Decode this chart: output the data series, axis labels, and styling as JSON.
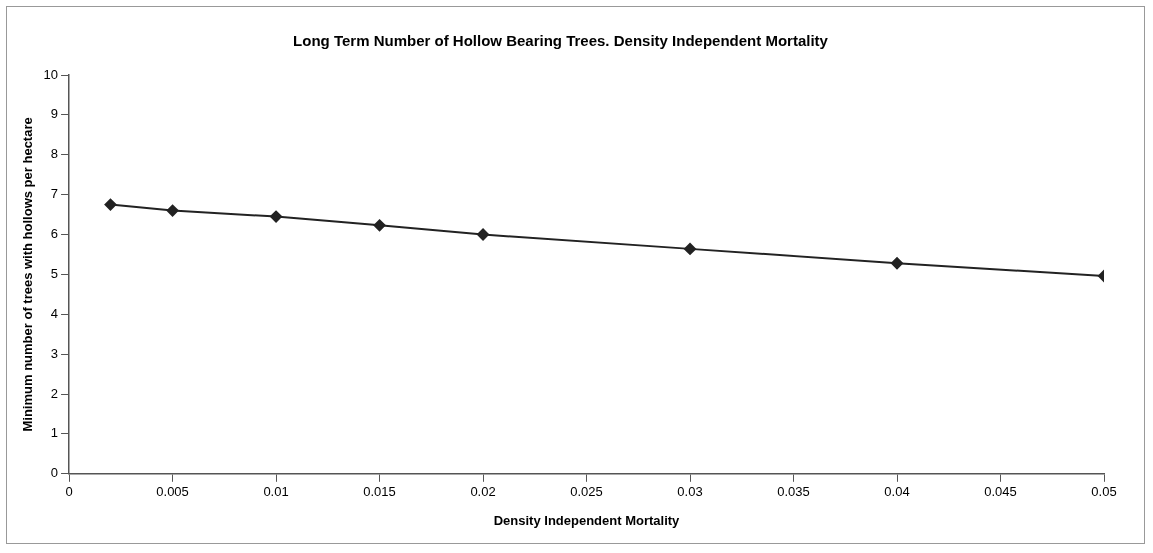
{
  "chart_data": {
    "type": "line",
    "title": "Long Term Number of Hollow Bearing Trees. Density Independent Mortality",
    "xlabel": "Density Independent Mortality",
    "ylabel": "Minimum number of trees with hollows per hectare",
    "x": [
      0.002,
      0.005,
      0.01,
      0.015,
      0.02,
      0.03,
      0.04,
      0.05
    ],
    "series": [
      {
        "color": "#222222",
        "values": [
          6.75,
          6.6,
          6.45,
          6.23,
          6.0,
          5.64,
          5.28,
          4.96
        ]
      }
    ],
    "xlim": [
      0,
      0.05
    ],
    "xticks": [
      0,
      0.005,
      0.01,
      0.015,
      0.02,
      0.025,
      0.03,
      0.035,
      0.04,
      0.045,
      0.05
    ],
    "ylim": [
      0,
      10
    ],
    "yticks": [
      0,
      1,
      2,
      3,
      4,
      5,
      6,
      7,
      8,
      9,
      10
    ],
    "grid": false,
    "legend": false,
    "marker": "diamond",
    "line_style": "solid"
  }
}
